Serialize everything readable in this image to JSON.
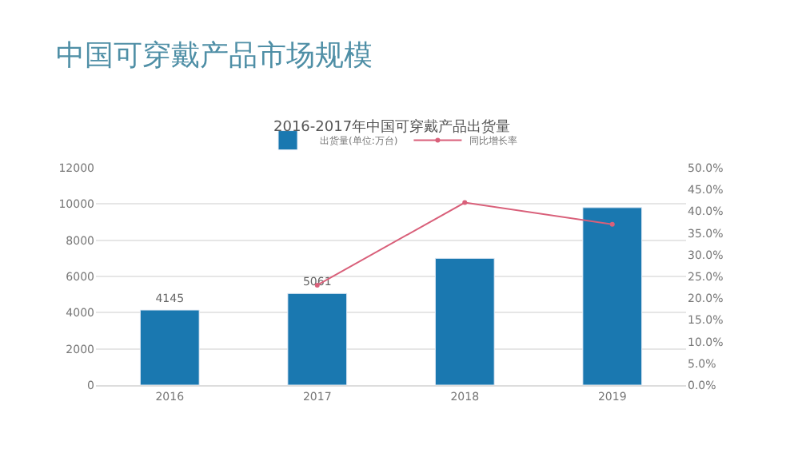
{
  "chart_data": {
    "type": "bar",
    "title": "中国可穿戴产品市场规模",
    "subtitle": "2016-2017年中国可穿戴产品出货量",
    "categories": [
      "2016",
      "2017",
      "2018",
      "2019"
    ],
    "series": [
      {
        "name": "出货量(单位:万台)",
        "color": "#1a78b0",
        "values": [
          4145,
          5061,
          7000,
          9800
        ],
        "value_labels": [
          "4145",
          "5061",
          null,
          null
        ]
      },
      {
        "name": "同比增长率",
        "type": "line",
        "axis": "y2",
        "color": "#d9607a",
        "values": [
          null,
          23,
          42,
          37
        ],
        "marker": "circle"
      }
    ],
    "ylim": [
      0,
      12000
    ],
    "yticks": [
      0,
      2000,
      4000,
      6000,
      8000,
      10000,
      12000
    ],
    "y2lim": [
      0,
      50
    ],
    "y2ticks": [
      {
        "value": 0,
        "label": "0.0%"
      },
      {
        "value": 5,
        "label": "5.0%"
      },
      {
        "value": 10,
        "label": "10.0%"
      },
      {
        "value": 15,
        "label": "15.0%"
      },
      {
        "value": 20,
        "label": "20.0%"
      },
      {
        "value": 25,
        "label": "25.0%"
      },
      {
        "value": 30,
        "label": "30.0%"
      },
      {
        "value": 35,
        "label": "35.0%"
      },
      {
        "value": 40,
        "label": "40.0%"
      },
      {
        "value": 45,
        "label": "45.0%"
      },
      {
        "value": 50,
        "label": "50.0%"
      }
    ],
    "grid": "y",
    "legend": "top"
  }
}
